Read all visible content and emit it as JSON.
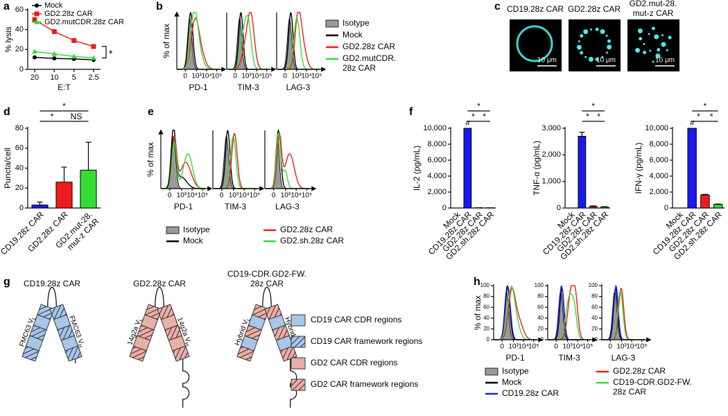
{
  "panel_labels": [
    "a",
    "b",
    "c",
    "d",
    "e",
    "f",
    "g",
    "h"
  ],
  "chart_data": [
    {
      "type": "line",
      "x_label": "E:T",
      "y_label": "% lysis",
      "categories": [
        "20",
        "10",
        "5",
        "2.5"
      ],
      "ylim": [
        0,
        60
      ],
      "yticks": [
        0,
        20,
        40,
        60
      ],
      "series": [
        {
          "name": "Mock",
          "color": "#000000",
          "marker": "circle",
          "values": [
            12,
            11,
            10.5,
            9.5
          ]
        },
        {
          "name": "GD2.28z CAR",
          "color": "#ee1c1c",
          "marker": "square",
          "values": [
            50,
            38,
            29,
            23
          ]
        },
        {
          "name": "GD2.mutCDR.28z CAR",
          "color": "#33dd33",
          "marker": "triangle",
          "values": [
            18,
            15.5,
            13,
            11.5
          ]
        }
      ],
      "annotation": "*"
    },
    {
      "type": "flow",
      "y_label": "% of max",
      "panels": [
        "PD-1",
        "TIM-3",
        "LAG-3"
      ],
      "xscale": "biexponential",
      "xlim": [
        -500,
        200000
      ],
      "xticks": [
        0,
        {
          "value": 1000,
          "label": "10³"
        },
        {
          "value": 10000,
          "label": "10⁴"
        },
        {
          "value": 100000,
          "label": "10⁵"
        }
      ],
      "legend": "right",
      "series": [
        {
          "name": "Isotype",
          "color": "#999999",
          "filled": true
        },
        {
          "name": "Mock",
          "color": "#000000"
        },
        {
          "name": "GD2.28z CAR",
          "color": "#ee1c1c"
        },
        {
          "name": "GD2.mutCDR.\n28z CAR",
          "color": "#33dd33"
        }
      ]
    },
    {
      "type": "bar",
      "y_label": "Puncta/cell",
      "categories": [
        "CD19.28z CAR",
        "GD2.28z CAR",
        "GD2.mut-28.\nmut-z CAR"
      ],
      "values": [
        3,
        26,
        38
      ],
      "errors": [
        3,
        15,
        28
      ],
      "colors": [
        "#1a1aee",
        "#ee1c1c",
        "#33dd33"
      ],
      "ylim": [
        0,
        80
      ],
      "yticks": [
        0,
        20,
        40,
        60,
        80
      ],
      "significance": [
        {
          "pair": [
            0,
            1
          ],
          "label": "*"
        },
        {
          "pair": [
            1,
            2
          ],
          "label": "NS"
        },
        {
          "pair": [
            0,
            2
          ],
          "label": "*"
        }
      ]
    },
    {
      "type": "flow",
      "y_label": "% of max",
      "panels": [
        "PD-1",
        "TIM-3",
        "LAG-3"
      ],
      "xscale": "biexponential",
      "xlim": [
        -500,
        200000
      ],
      "xticks": [
        0,
        {
          "value": 1000,
          "label": "10³"
        },
        {
          "value": 10000,
          "label": "10⁴"
        },
        {
          "value": 100000,
          "label": "10⁵"
        }
      ],
      "legend": "bottom",
      "series": [
        {
          "name": "Isotype",
          "color": "#999999",
          "filled": true
        },
        {
          "name": "Mock",
          "color": "#000000"
        },
        {
          "name": "GD2.28z CAR",
          "color": "#ee1c1c"
        },
        {
          "name": "GD2.sh.28z CAR",
          "color": "#33dd33"
        }
      ]
    },
    {
      "type": "bar",
      "y_label": "IL-2 (pg/mL)",
      "categories": [
        "Mock",
        "CD19.28z CAR",
        "GD2.28z CAR",
        "GD2.sh.28z CAR"
      ],
      "values": [
        0,
        10000,
        40,
        30
      ],
      "colors": [
        "#000000",
        "#1a1aee",
        "#ee1c1c",
        "#33dd33"
      ],
      "ylim": [
        0,
        10000
      ],
      "yticks": [
        0,
        {
          "value": 2000,
          "label": "2,000"
        },
        {
          "value": 4000,
          "label": "4,000"
        },
        {
          "value": 6000,
          "label": "6,000"
        },
        {
          "value": 8000,
          "label": "8,000"
        },
        {
          "value": 10000,
          "label": "10,000"
        }
      ],
      "flags": [
        {
          "index": 1,
          "label": "#"
        }
      ],
      "significance": [
        {
          "pair": [
            1,
            2
          ],
          "label": "*"
        },
        {
          "pair": [
            2,
            3
          ],
          "label": "*"
        },
        {
          "pair": [
            1,
            3
          ],
          "label": "*"
        }
      ]
    },
    {
      "type": "bar",
      "y_label": "TNF-α (pg/mL)",
      "categories": [
        "Mock",
        "CD19.28z CAR",
        "GD2.28z CAR",
        "GD2.sh.28z CAR"
      ],
      "values": [
        0,
        2700,
        60,
        40
      ],
      "errors": [
        0,
        150,
        20,
        10
      ],
      "colors": [
        "#000000",
        "#1a1aee",
        "#ee1c1c",
        "#33dd33"
      ],
      "ylim": [
        0,
        3000
      ],
      "yticks": [
        0,
        {
          "value": 1000,
          "label": "1,000"
        },
        {
          "value": 2000,
          "label": "2,000"
        },
        {
          "value": 3000,
          "label": "3,000"
        }
      ],
      "significance": [
        {
          "pair": [
            1,
            2
          ],
          "label": "*"
        },
        {
          "pair": [
            2,
            3
          ],
          "label": "*"
        },
        {
          "pair": [
            1,
            3
          ],
          "label": "*"
        }
      ]
    },
    {
      "type": "bar",
      "y_label": "IFN-γ (pg/mL)",
      "categories": [
        "Mock",
        "CD19.28z CAR",
        "GD2.28z CAR",
        "GD2.sh.28z CAR"
      ],
      "values": [
        0,
        10000,
        1650,
        450
      ],
      "errors": [
        0,
        0,
        60,
        50
      ],
      "colors": [
        "#000000",
        "#1a1aee",
        "#ee1c1c",
        "#33dd33"
      ],
      "ylim": [
        0,
        10000
      ],
      "yticks": [
        0,
        {
          "value": 2000,
          "label": "2,000"
        },
        {
          "value": 4000,
          "label": "4,000"
        },
        {
          "value": 6000,
          "label": "6,000"
        },
        {
          "value": 8000,
          "label": "8,000"
        },
        {
          "value": 10000,
          "label": "10,000"
        }
      ],
      "flags": [
        {
          "index": 1,
          "label": "#"
        }
      ],
      "significance": [
        {
          "pair": [
            1,
            2
          ],
          "label": "*"
        },
        {
          "pair": [
            2,
            3
          ],
          "label": "*"
        },
        {
          "pair": [
            1,
            3
          ],
          "label": "*"
        }
      ]
    },
    {
      "type": "flow",
      "y_label": "% of max",
      "panels": [
        "PD-1",
        "TIM-3",
        "LAG-3"
      ],
      "xscale": "biexponential",
      "xlim": [
        -500,
        200000
      ],
      "xticks": [
        0,
        {
          "value": 1000,
          "label": "10³"
        },
        {
          "value": 10000,
          "label": "10⁴"
        },
        {
          "value": 100000,
          "label": "10⁵"
        }
      ],
      "ylim": [
        0,
        100
      ],
      "yticks": [
        0,
        20,
        40,
        60,
        80,
        100
      ],
      "legend": "bottom",
      "series": [
        {
          "name": "Isotype",
          "color": "#999999",
          "filled": true
        },
        {
          "name": "Mock",
          "color": "#000000"
        },
        {
          "name": "CD19.28z CAR",
          "color": "#1a1aee"
        },
        {
          "name": "GD2.28z CAR",
          "color": "#ee1c1c"
        },
        {
          "name": "CD19-CDR.GD2-FW.\n28z CAR",
          "color": "#33dd33"
        }
      ]
    }
  ],
  "images": [
    {
      "title": "CD19.28z CAR",
      "scale_bar": "10 μm"
    },
    {
      "title": "GD2.28z CAR",
      "scale_bar": "10 μm"
    },
    {
      "title": "GD2.mut-28.\nmut-z CAR",
      "scale_bar": "10 μm"
    }
  ],
  "diagram": {
    "cars": [
      {
        "title": "CD19.28z CAR",
        "vl": {
          "text": "FMC63 V",
          "sub": "L"
        },
        "vh": {
          "text": "FMC63 V",
          "sub": "H"
        }
      },
      {
        "title": "GD2.28z CAR",
        "vl": {
          "text": "14g2a V",
          "sub": "L"
        },
        "vh": {
          "text": "14g2a V",
          "sub": "H"
        }
      },
      {
        "title": "CD19-CDR.GD2-FW.\n28z CAR",
        "vl": {
          "text": "Hybrid V",
          "sub": "L"
        },
        "vh": {
          "text": "Hybrid V",
          "sub": "H"
        }
      }
    ],
    "legend": [
      "CD19 CAR CDR regions",
      "CD19 CAR framework regions",
      "GD2 CAR CDR regions",
      "GD2 CAR framework regions"
    ]
  }
}
